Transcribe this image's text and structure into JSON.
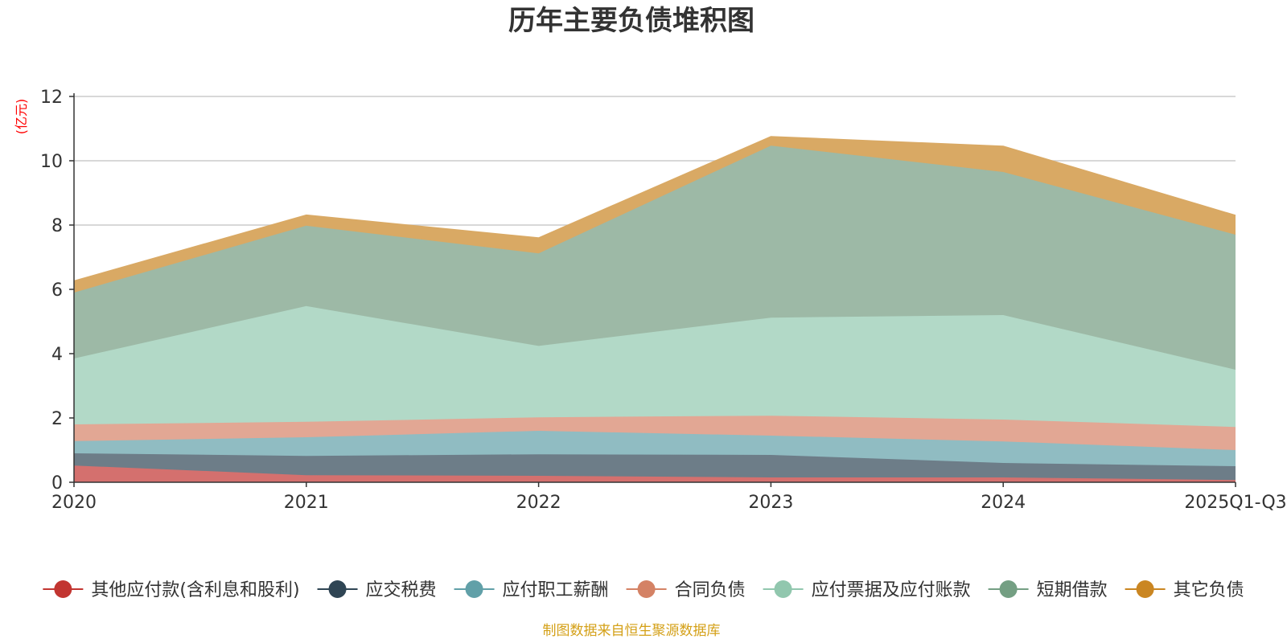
{
  "chart_data": {
    "type": "area",
    "stacked": true,
    "title": "历年主要负债堆积图",
    "unit_label": "(亿元)",
    "x": [
      "2020",
      "2021",
      "2022",
      "2023",
      "2024",
      "2025Q1-Q3"
    ],
    "ylim": [
      0,
      12
    ],
    "yticks": [
      0,
      2,
      4,
      6,
      8,
      10,
      12
    ],
    "grid": true,
    "legend_position": "bottom",
    "series": [
      {
        "name": "其他应付款(含利息和股利)",
        "color": "#c23531",
        "fill": "#d4706e",
        "values": [
          0.52,
          0.22,
          0.2,
          0.15,
          0.15,
          0.07
        ]
      },
      {
        "name": "应交税费",
        "color": "#2f4554",
        "fill": "#6d7d88",
        "values": [
          0.38,
          0.6,
          0.67,
          0.7,
          0.45,
          0.43
        ]
      },
      {
        "name": "应付职工薪酬",
        "color": "#61a0a8",
        "fill": "#90bcc2",
        "values": [
          0.38,
          0.58,
          0.73,
          0.6,
          0.67,
          0.5
        ]
      },
      {
        "name": "合同负债",
        "color": "#d48265",
        "fill": "#e2a794",
        "values": [
          0.52,
          0.48,
          0.42,
          0.62,
          0.68,
          0.72
        ]
      },
      {
        "name": "应付票据及应付账款",
        "color": "#91c7ae",
        "fill": "#b2d9c7",
        "values": [
          2.05,
          3.6,
          2.22,
          3.05,
          3.25,
          1.78
        ]
      },
      {
        "name": "短期借款",
        "color": "#749f83",
        "fill": "#9db9a6",
        "values": [
          2.05,
          2.5,
          2.88,
          5.35,
          4.45,
          4.2
        ]
      },
      {
        "name": "其它负债",
        "color": "#ca8622",
        "fill": "#d9a964",
        "values": [
          0.36,
          0.33,
          0.48,
          0.28,
          0.8,
          0.6
        ]
      }
    ]
  },
  "footer": {
    "source": "制图数据来自恒生聚源数据库"
  }
}
